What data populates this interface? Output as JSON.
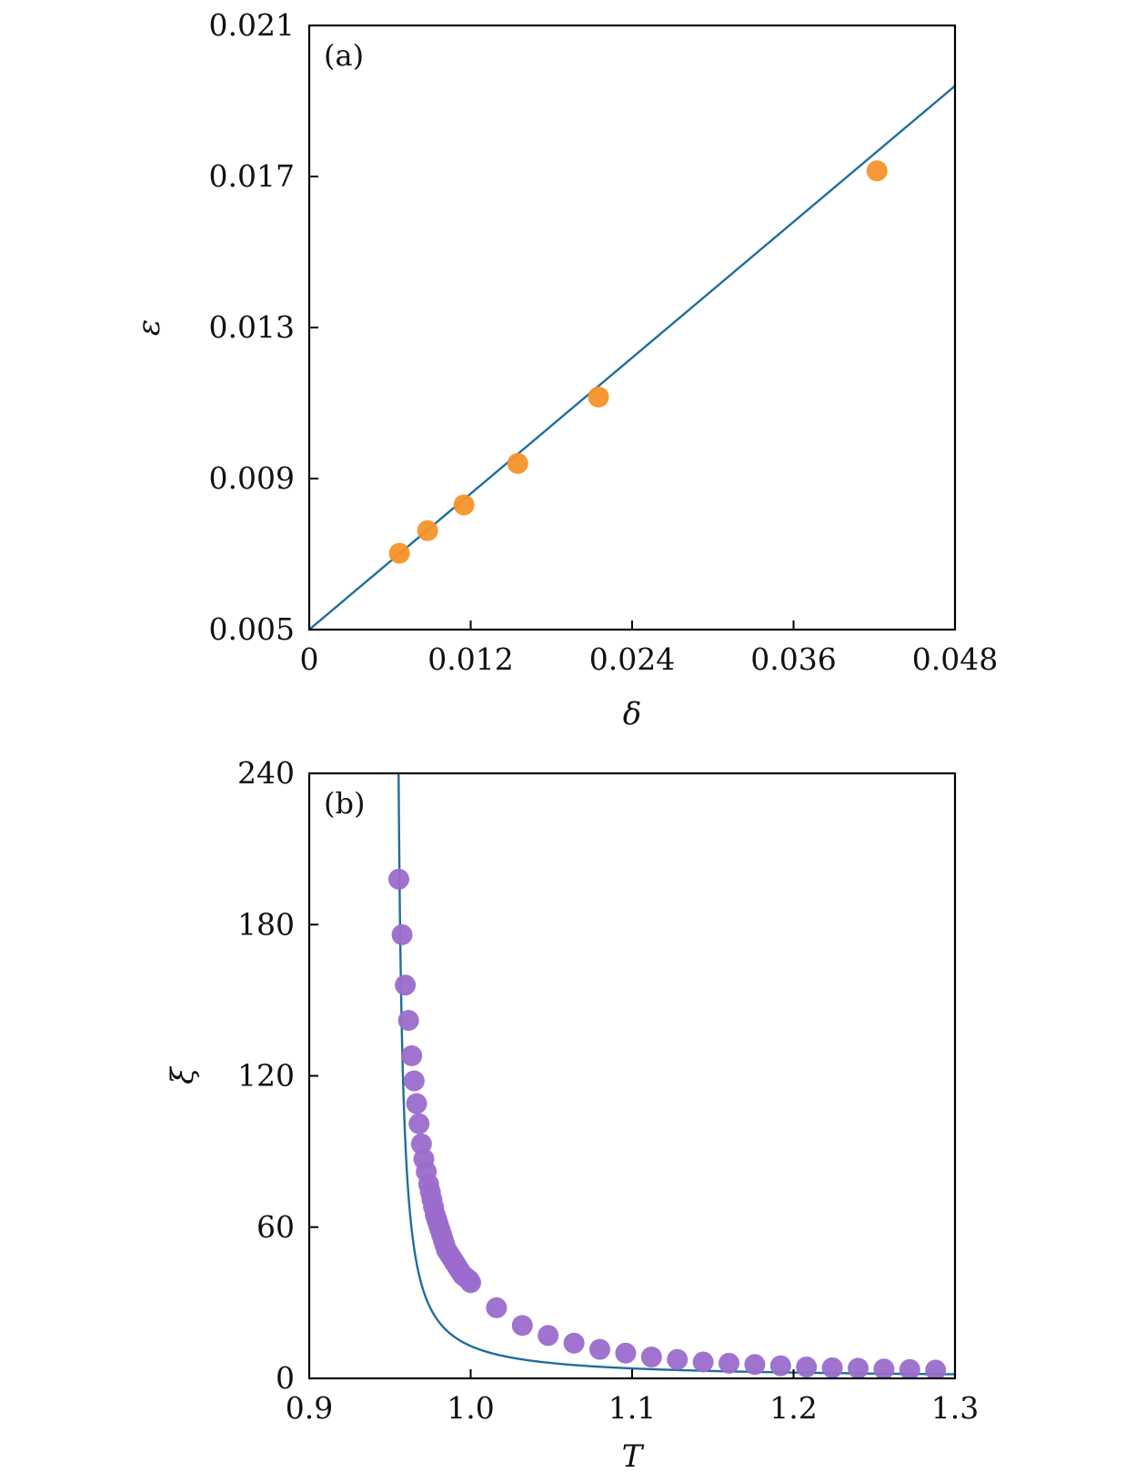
{
  "chart_data": [
    {
      "type": "scatter",
      "panel_label": "(a)",
      "xlabel": "δ",
      "ylabel": "ε",
      "xlim": [
        0,
        0.048
      ],
      "ylim": [
        0.005,
        0.021
      ],
      "xticks": [
        "0",
        "0.012",
        "0.024",
        "0.036",
        "0.048"
      ],
      "yticks": [
        "0.005",
        "0.009",
        "0.013",
        "0.017",
        "0.021"
      ],
      "grid": false,
      "series": [
        {
          "kind": "points",
          "color": "#f5922a",
          "x": [
            0.0067,
            0.0088,
            0.0115,
            0.0155,
            0.0215,
            0.0422
          ],
          "y": [
            0.00702,
            0.00762,
            0.0083,
            0.0094,
            0.01116,
            0.01715
          ]
        },
        {
          "kind": "fit_line",
          "color": "#1f6e9c",
          "x": [
            0,
            0.048
          ],
          "y": [
            0.005,
            0.0194
          ]
        }
      ]
    },
    {
      "type": "scatter",
      "panel_label": "(b)",
      "xlabel": "T",
      "ylabel": "ξ",
      "xlim": [
        0.9,
        1.3
      ],
      "ylim": [
        0,
        240
      ],
      "xticks": [
        "0.9",
        "1.0",
        "1.1",
        "1.2",
        "1.3"
      ],
      "yticks": [
        "0",
        "60",
        "120",
        "180",
        "240"
      ],
      "grid": false,
      "series": [
        {
          "kind": "points",
          "color": "#9b6ccc",
          "x": [
            0.9555,
            0.9575,
            0.9595,
            0.9615,
            0.9635,
            0.965,
            0.9665,
            0.968,
            0.9695,
            0.971,
            0.9725,
            0.974,
            0.975,
            0.976,
            0.977,
            0.978,
            0.979,
            0.98,
            0.981,
            0.982,
            0.983,
            0.984,
            0.985,
            0.986,
            0.987,
            0.988,
            0.989,
            0.99,
            0.991,
            0.992,
            0.993,
            0.994,
            0.995,
            0.996,
            0.997,
            0.998,
            0.999,
            1.0,
            1.016,
            1.032,
            1.048,
            1.064,
            1.08,
            1.096,
            1.112,
            1.128,
            1.144,
            1.16,
            1.176,
            1.192,
            1.208,
            1.224,
            1.24,
            1.256,
            1.272,
            1.288
          ],
          "y": [
            198,
            176,
            156,
            142,
            128,
            118,
            109,
            101,
            93,
            87,
            82,
            77,
            74,
            71,
            68,
            65,
            63,
            61,
            59,
            57,
            55,
            53,
            51,
            50,
            49,
            48,
            47,
            46,
            45,
            44,
            43,
            42,
            41,
            40.5,
            40,
            39.5,
            39,
            38,
            28,
            21,
            17,
            14,
            11.5,
            10,
            8.5,
            7.5,
            6.5,
            6,
            5.5,
            5,
            4.5,
            4.2,
            4,
            3.7,
            3.5,
            3.3
          ]
        },
        {
          "kind": "fit_curve",
          "color": "#1f6e9c",
          "model": "xi = A / (T - Tc)^nu",
          "A": 0.54,
          "Tc": 0.9525,
          "nu": 1.04
        }
      ]
    }
  ]
}
